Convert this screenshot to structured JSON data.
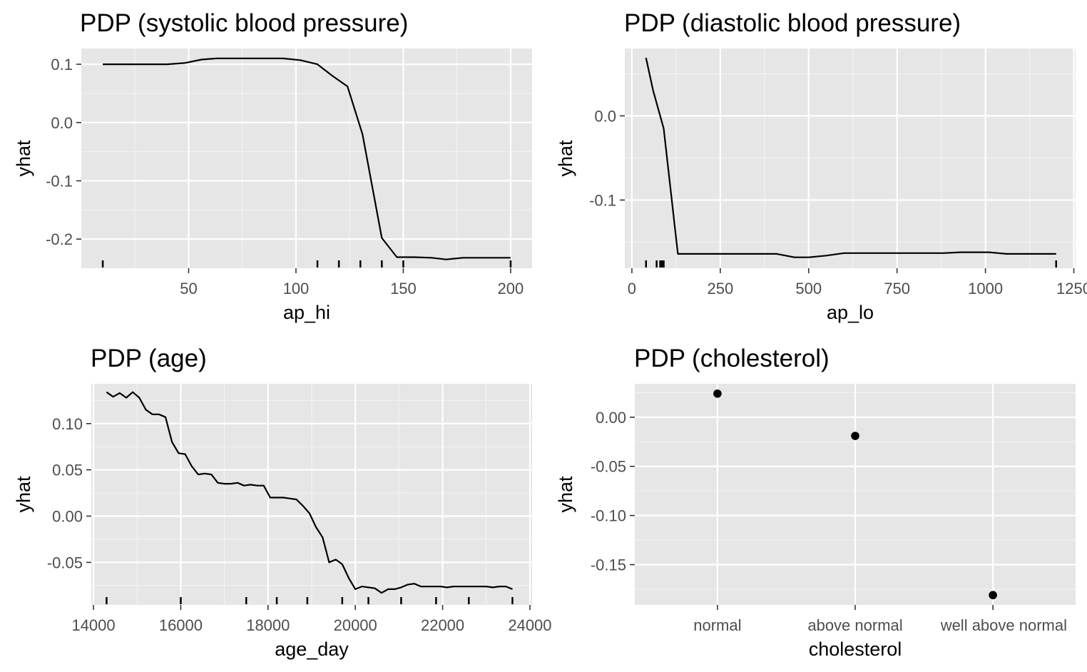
{
  "chart_data": [
    {
      "type": "line",
      "title": "PDP (systolic blood pressure)",
      "xlabel": "ap_hi",
      "ylabel": "yhat",
      "xlim": [
        0,
        210
      ],
      "ylim": [
        -0.25,
        0.127
      ],
      "xticks": [
        50,
        100,
        150,
        200
      ],
      "xtick_labels": [
        "50",
        "100",
        "150",
        "200"
      ],
      "yticks": [
        0.1,
        0.0,
        -0.1,
        -0.2
      ],
      "ytick_labels": [
        "0.1",
        "0.0",
        "-0.1",
        "-0.2"
      ],
      "x": [
        10,
        20,
        30,
        40,
        48,
        56,
        63,
        72,
        80,
        88,
        94,
        102,
        110,
        117,
        124,
        131,
        140,
        147,
        155,
        163,
        170,
        178,
        186,
        194,
        200
      ],
      "y": [
        0.1,
        0.1,
        0.1,
        0.1,
        0.102,
        0.108,
        0.11,
        0.11,
        0.11,
        0.11,
        0.11,
        0.107,
        0.1,
        0.08,
        0.062,
        -0.02,
        -0.198,
        -0.231,
        -0.231,
        -0.232,
        -0.235,
        -0.232,
        -0.232,
        -0.232,
        -0.232
      ],
      "rug": [
        10,
        110,
        120,
        130,
        140,
        150,
        200
      ],
      "grid": true,
      "legend": "none"
    },
    {
      "type": "line",
      "title": "PDP (diastolic blood pressure)",
      "xlabel": "ap_lo",
      "ylabel": "yhat",
      "xlim": [
        -20,
        1255
      ],
      "ylim": [
        -0.181,
        0.08
      ],
      "xticks": [
        0,
        250,
        500,
        750,
        1000,
        1250
      ],
      "xtick_labels": [
        "0",
        "250",
        "500",
        "750",
        "1000",
        "1250"
      ],
      "yticks": [
        0.0,
        -0.1
      ],
      "ytick_labels": [
        "0.0",
        "-0.1"
      ],
      "x": [
        40,
        60,
        90,
        130,
        250,
        410,
        460,
        500,
        550,
        600,
        700,
        880,
        930,
        1010,
        1060,
        1200
      ],
      "y": [
        0.069,
        0.03,
        -0.015,
        -0.164,
        -0.164,
        -0.164,
        -0.168,
        -0.168,
        -0.166,
        -0.163,
        -0.163,
        -0.163,
        -0.162,
        -0.162,
        -0.164,
        -0.164
      ],
      "rug": [
        40,
        70,
        80,
        85,
        90,
        1200
      ],
      "grid": true,
      "legend": "none"
    },
    {
      "type": "line",
      "title": "PDP (age)",
      "xlabel": "age_day",
      "ylabel": "yhat",
      "xlim": [
        13950,
        24050
      ],
      "ylim": [
        -0.096,
        0.143
      ],
      "xticks": [
        14000,
        16000,
        18000,
        20000,
        22000,
        24000
      ],
      "xtick_labels": [
        "14000",
        "16000",
        "18000",
        "20000",
        "22000",
        "24000"
      ],
      "yticks": [
        0.1,
        0.05,
        0.0,
        -0.05
      ],
      "ytick_labels": [
        "0.10",
        "0.05",
        "0.00",
        "-0.05"
      ],
      "x": [
        14300,
        14450,
        14600,
        14750,
        14900,
        15050,
        15200,
        15350,
        15500,
        15650,
        15800,
        15950,
        16100,
        16250,
        16400,
        16550,
        16700,
        16850,
        17000,
        17150,
        17300,
        17450,
        17600,
        17750,
        17900,
        18050,
        18200,
        18350,
        18500,
        18650,
        18800,
        18950,
        19100,
        19250,
        19400,
        19550,
        19700,
        19850,
        20000,
        20150,
        20300,
        20450,
        20600,
        20750,
        20900,
        21050,
        21200,
        21350,
        21500,
        21650,
        21800,
        21950,
        22100,
        22250,
        22400,
        22550,
        22700,
        22850,
        23000,
        23150,
        23300,
        23450,
        23600
      ],
      "y": [
        0.134,
        0.129,
        0.133,
        0.128,
        0.134,
        0.128,
        0.115,
        0.11,
        0.11,
        0.107,
        0.08,
        0.068,
        0.067,
        0.054,
        0.045,
        0.046,
        0.045,
        0.036,
        0.035,
        0.035,
        0.036,
        0.033,
        0.034,
        0.033,
        0.033,
        0.02,
        0.02,
        0.02,
        0.019,
        0.018,
        0.011,
        0.003,
        -0.012,
        -0.023,
        -0.05,
        -0.047,
        -0.052,
        -0.067,
        -0.079,
        -0.076,
        -0.077,
        -0.078,
        -0.083,
        -0.079,
        -0.079,
        -0.077,
        -0.074,
        -0.073,
        -0.076,
        -0.076,
        -0.076,
        -0.076,
        -0.077,
        -0.076,
        -0.076,
        -0.076,
        -0.076,
        -0.076,
        -0.076,
        -0.077,
        -0.076,
        -0.076,
        -0.079
      ],
      "rug": [
        14300,
        16000,
        17500,
        18200,
        18900,
        19700,
        20300,
        21050,
        21850,
        22600,
        23600
      ],
      "grid": true,
      "legend": "none"
    },
    {
      "type": "scatter",
      "title": "PDP (cholesterol)",
      "xlabel": "cholesterol",
      "ylabel": "yhat",
      "categories": [
        "normal",
        "above normal",
        "well above normal"
      ],
      "values": [
        0.024,
        -0.019,
        -0.181
      ],
      "ylim": [
        -0.191,
        0.034
      ],
      "yticks": [
        0.0,
        -0.05,
        -0.1,
        -0.15
      ],
      "ytick_labels": [
        "0.00",
        "-0.05",
        "-0.10",
        "-0.15"
      ],
      "grid": true,
      "legend": "none"
    }
  ]
}
